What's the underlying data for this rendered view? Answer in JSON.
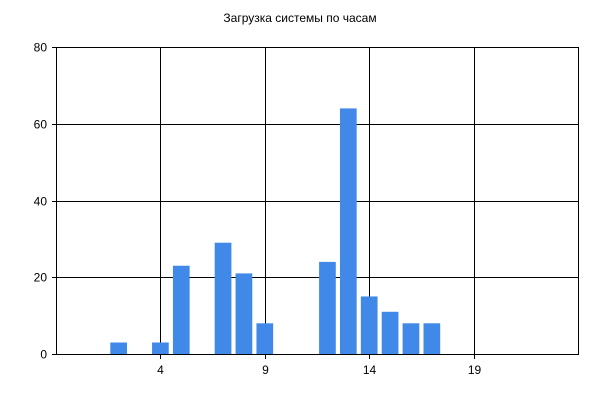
{
  "chart_data": {
    "type": "bar",
    "title": "Загрузка системы по часам",
    "xlabel": "",
    "ylabel": "",
    "x": [
      2,
      4,
      5,
      7,
      8,
      9,
      12,
      13,
      14,
      15,
      16,
      17
    ],
    "values": [
      3,
      3,
      23,
      29,
      21,
      8,
      24,
      64,
      15,
      11,
      8,
      8
    ],
    "xlim": [
      -1,
      24
    ],
    "ylim": [
      0,
      80
    ],
    "x_ticks": [
      4,
      9,
      14,
      19
    ],
    "y_ticks": [
      0,
      20,
      40,
      60,
      80
    ],
    "grid": true,
    "legend": "none",
    "bar_color": "#4189E8"
  }
}
